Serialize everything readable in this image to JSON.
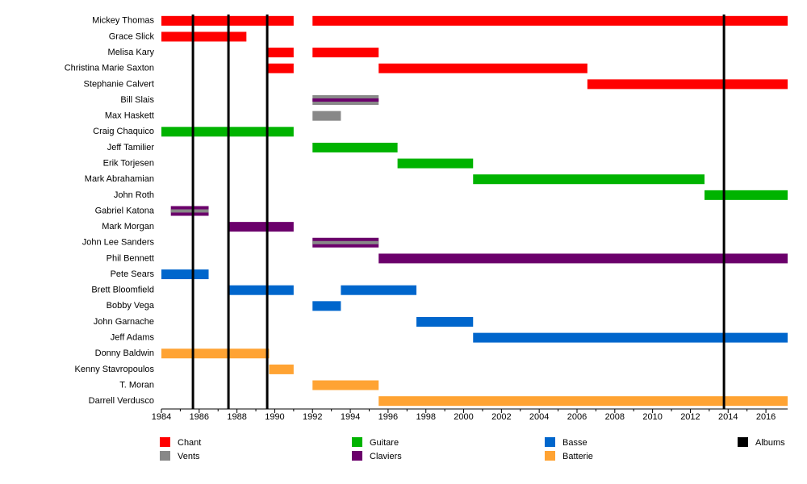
{
  "chart_data": {
    "type": "timeline",
    "xlim": [
      1984,
      2017.15
    ],
    "xticks": [
      1984,
      1986,
      1988,
      1990,
      1992,
      1994,
      1996,
      1998,
      2000,
      2002,
      2004,
      2006,
      2008,
      2010,
      2012,
      2014,
      2016
    ],
    "series": [
      {
        "name": "Chant",
        "color": "#ff0000"
      },
      {
        "name": "Vents",
        "color": "#888888"
      },
      {
        "name": "Guitare",
        "color": "#00b300"
      },
      {
        "name": "Claviers",
        "color": "#6b006b"
      },
      {
        "name": "Basse",
        "color": "#0066cc"
      },
      {
        "name": "Batterie",
        "color": "#ffa333"
      }
    ],
    "albums": {
      "name": "Albums",
      "color": "#000000",
      "x": [
        1985.67,
        1987.55,
        1989.6,
        2013.78
      ]
    },
    "rows": [
      {
        "name": "Mickey Thomas",
        "spans": [
          {
            "start": 1984,
            "end": 1991,
            "role": 0
          },
          {
            "start": 1992,
            "end": 2017.15,
            "role": 0
          }
        ]
      },
      {
        "name": "Grace Slick",
        "spans": [
          {
            "start": 1984,
            "end": 1988.5,
            "role": 0
          }
        ]
      },
      {
        "name": "Melisa Kary",
        "spans": [
          {
            "start": 1989.65,
            "end": 1991,
            "role": 0
          },
          {
            "start": 1992,
            "end": 1995.5,
            "role": 0
          }
        ]
      },
      {
        "name": "Christina Marie Saxton",
        "spans": [
          {
            "start": 1989.65,
            "end": 1991,
            "role": 0
          },
          {
            "start": 1995.5,
            "end": 2006.55,
            "role": 0
          }
        ]
      },
      {
        "name": "Stephanie Calvert",
        "spans": [
          {
            "start": 2006.55,
            "end": 2017.15,
            "role": 0
          }
        ]
      },
      {
        "name": "Bill Slais",
        "spans": [
          {
            "start": 1992,
            "end": 1995.5,
            "role": 1,
            "stripe": 3
          }
        ]
      },
      {
        "name": "Max Haskett",
        "spans": [
          {
            "start": 1992,
            "end": 1993.5,
            "role": 1
          }
        ]
      },
      {
        "name": "Craig Chaquico",
        "spans": [
          {
            "start": 1984,
            "end": 1991,
            "role": 2
          }
        ]
      },
      {
        "name": "Jeff Tamilier",
        "spans": [
          {
            "start": 1992,
            "end": 1996.5,
            "role": 2
          }
        ]
      },
      {
        "name": "Erik Torjesen",
        "spans": [
          {
            "start": 1996.5,
            "end": 2000.5,
            "role": 2
          }
        ]
      },
      {
        "name": "Mark Abrahamian",
        "spans": [
          {
            "start": 2000.5,
            "end": 2012.75,
            "role": 2
          }
        ]
      },
      {
        "name": "John Roth",
        "spans": [
          {
            "start": 2012.75,
            "end": 2017.15,
            "role": 2
          }
        ]
      },
      {
        "name": "Gabriel Katona",
        "spans": [
          {
            "start": 1984.5,
            "end": 1986.5,
            "role": 3,
            "stripe": 1
          }
        ]
      },
      {
        "name": "Mark Morgan",
        "spans": [
          {
            "start": 1987.6,
            "end": 1991,
            "role": 3
          }
        ]
      },
      {
        "name": "John Lee Sanders",
        "spans": [
          {
            "start": 1992,
            "end": 1995.5,
            "role": 3,
            "stripe": 1
          }
        ]
      },
      {
        "name": "Phil Bennett",
        "spans": [
          {
            "start": 1995.5,
            "end": 2017.15,
            "role": 3
          }
        ]
      },
      {
        "name": "Pete Sears",
        "spans": [
          {
            "start": 1984,
            "end": 1986.5,
            "role": 4
          }
        ]
      },
      {
        "name": "Brett Bloomfield",
        "spans": [
          {
            "start": 1987.6,
            "end": 1991,
            "role": 4
          },
          {
            "start": 1993.5,
            "end": 1997.5,
            "role": 4
          }
        ]
      },
      {
        "name": "Bobby Vega",
        "spans": [
          {
            "start": 1992,
            "end": 1993.5,
            "role": 4
          }
        ]
      },
      {
        "name": "John Garnache",
        "spans": [
          {
            "start": 1997.5,
            "end": 2000.5,
            "role": 4
          }
        ]
      },
      {
        "name": "Jeff Adams",
        "spans": [
          {
            "start": 2000.5,
            "end": 2017.15,
            "role": 4
          }
        ]
      },
      {
        "name": "Donny Baldwin",
        "spans": [
          {
            "start": 1984,
            "end": 1989.7,
            "role": 5
          }
        ]
      },
      {
        "name": "Kenny Stavropoulos",
        "spans": [
          {
            "start": 1989.7,
            "end": 1991,
            "role": 5
          }
        ]
      },
      {
        "name": "T. Moran",
        "spans": [
          {
            "start": 1992,
            "end": 1995.5,
            "role": 5
          }
        ]
      },
      {
        "name": "Darrell Verdusco",
        "spans": [
          {
            "start": 1995.5,
            "end": 2017.15,
            "role": 5
          }
        ]
      }
    ]
  }
}
